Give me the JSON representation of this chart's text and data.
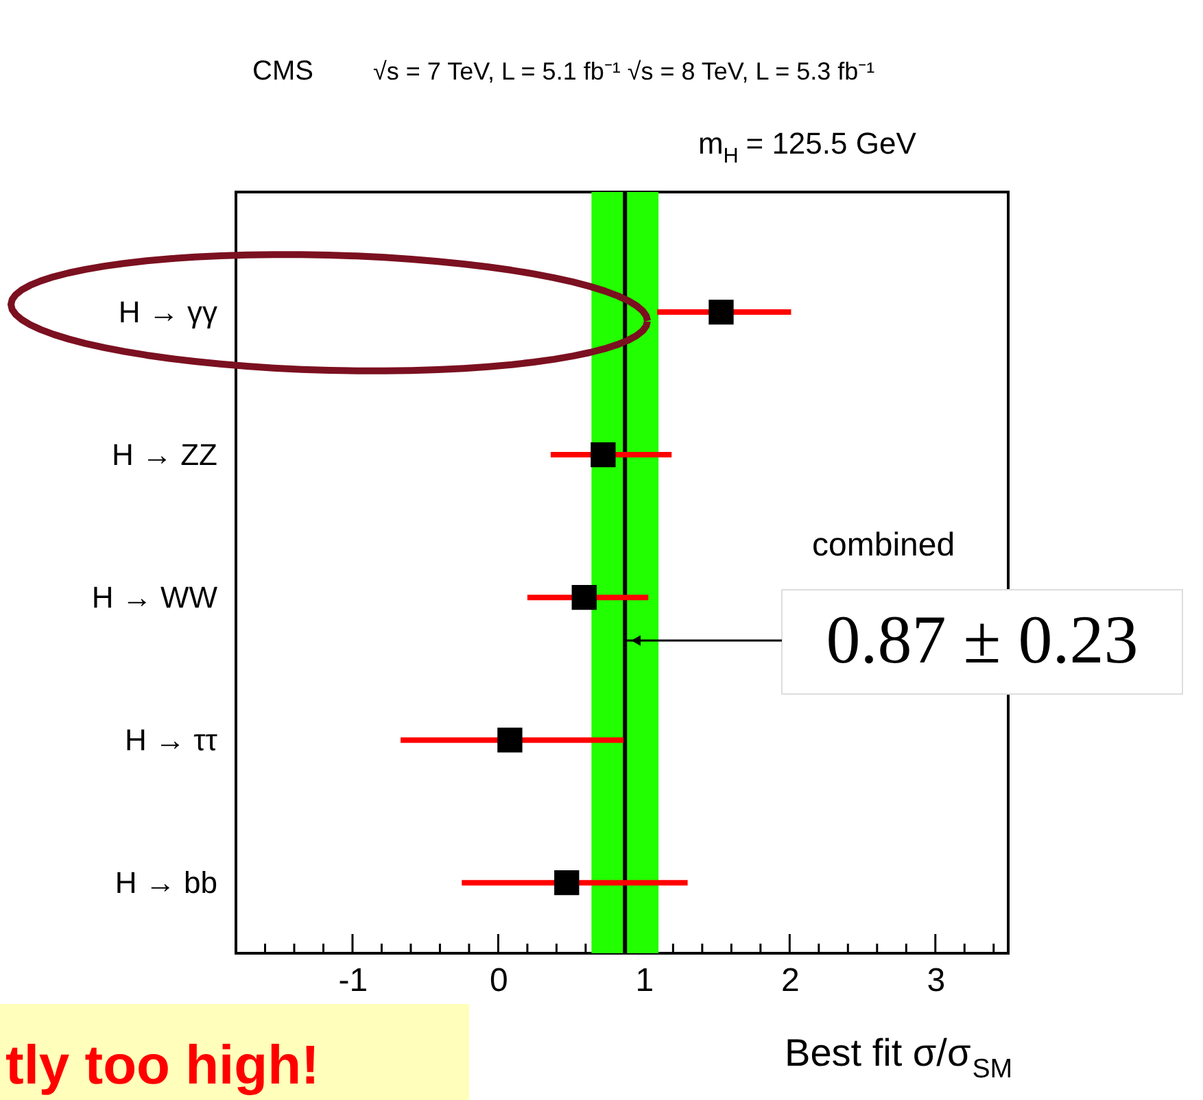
{
  "chart_data": {
    "type": "scatter",
    "orientation": "horizontal",
    "categories": [
      "H → γγ",
      "H → ZZ",
      "H → WW",
      "H → ττ",
      "H → bb"
    ],
    "series": [
      {
        "color": "#000000",
        "values": [
          1.53,
          0.72,
          0.59,
          0.08,
          0.47
        ],
        "errors": [
          [
            1.09,
            2.01
          ],
          [
            0.36,
            1.19
          ],
          [
            0.2,
            1.03
          ],
          [
            -0.67,
            0.86
          ],
          [
            -0.25,
            1.3
          ]
        ]
      }
    ],
    "marker": "square",
    "xlabel": "Best fit σ/σ$_{SM}$",
    "xlim": [
      -1.8,
      3.5
    ],
    "xticks": [
      {
        "value": -1.6,
        "label": null
      },
      {
        "value": -1.4,
        "label": null
      },
      {
        "value": -1.2,
        "label": null
      },
      {
        "value": -1,
        "label": "-1"
      },
      {
        "value": -0.8,
        "label": null
      },
      {
        "value": -0.6,
        "label": null
      },
      {
        "value": -0.4,
        "label": null
      },
      {
        "value": -0.2,
        "label": null
      },
      0,
      {
        "value": 0.2,
        "label": null
      },
      {
        "value": 0.4,
        "label": null
      },
      {
        "value": 0.6,
        "label": null
      },
      {
        "value": 0.8,
        "label": null
      },
      1,
      {
        "value": 1.2,
        "label": null
      },
      {
        "value": 1.4,
        "label": null
      },
      {
        "value": 1.6,
        "label": null
      },
      {
        "value": 1.8,
        "label": null
      },
      2,
      {
        "value": 2.2,
        "label": null
      },
      {
        "value": 2.4,
        "label": null
      },
      {
        "value": 2.6,
        "label": null
      },
      {
        "value": 2.8,
        "label": null
      },
      3,
      {
        "value": 3.2,
        "label": null
      },
      {
        "value": 3.4,
        "label": null
      }
    ],
    "grid": false,
    "legend": false,
    "ref_lines": [
      {
        "axis": "x",
        "value": 0.87,
        "color": "#000000"
      }
    ],
    "bands": [
      {
        "axis": "x",
        "from": 0.64,
        "to": 1.1,
        "color": "#22ff00"
      }
    ],
    "annotations": [
      "CMS",
      "√s = 7 TeV, L = 5.1 fb⁻¹  √s = 8 TeV, L = 5.3 fb⁻¹",
      "m$_{H}$ = 125.5 GeV",
      "combined",
      {
        "text": "0.87 ± 0.23",
        "x": 0.87
      },
      "tly too high!"
    ]
  }
}
